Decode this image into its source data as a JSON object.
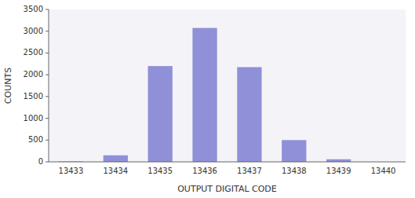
{
  "chart_data": {
    "type": "bar",
    "categories": [
      "13433",
      "13434",
      "13435",
      "13436",
      "13437",
      "13438",
      "13439",
      "13440"
    ],
    "values": [
      10,
      150,
      2200,
      3075,
      2175,
      500,
      60,
      0
    ],
    "color": "#9090d8",
    "xlabel": "OUTPUT DIGITAL CODE",
    "ylabel": "COUNTS",
    "ylim": [
      0,
      3500
    ],
    "yticks": [
      0,
      500,
      1000,
      1500,
      2000,
      2500,
      3000,
      3500
    ],
    "grid": false
  }
}
